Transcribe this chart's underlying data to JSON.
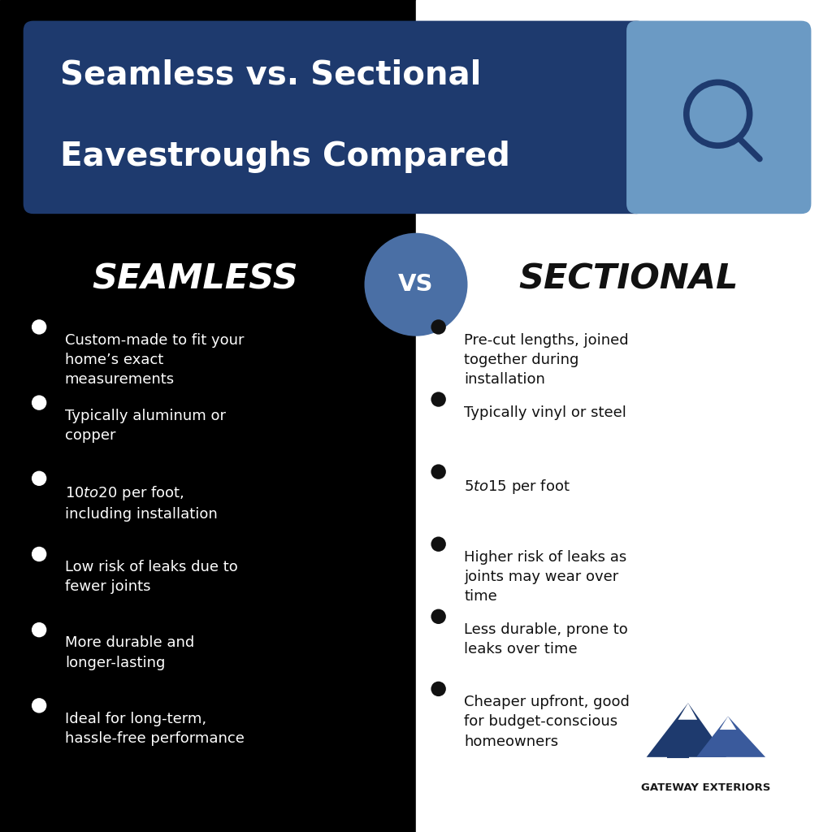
{
  "title_line1": "Seamless vs. Sectional",
  "title_line2": "Eavestroughs Compared",
  "left_heading": "SEAMLESS",
  "right_heading": "SECTIONAL",
  "vs_text": "VS",
  "left_bg": "#000000",
  "right_bg": "#ffffff",
  "title_box_color": "#1e3a6e",
  "title_box_light": "#6b9ac4",
  "vs_circle_color": "#4a6fa5",
  "left_text_color": "#ffffff",
  "right_text_color": "#111111",
  "left_items": [
    "Custom-made to fit your\nhome’s exact\nmeasurements",
    "Typically aluminum or\ncopper",
    "$10 to $20 per foot,\nincluding installation",
    "Low risk of leaks due to\nfewer joints",
    "More durable and\nlonger-lasting",
    "Ideal for long-term,\nhassle-free performance"
  ],
  "right_items": [
    "Pre-cut lengths, joined\ntogether during\ninstallation",
    "Typically vinyl or steel",
    "$5 to $15 per foot",
    "Higher risk of leaks as\njoints may wear over\ntime",
    "Less durable, prone to\nleaks over time",
    "Cheaper upfront, good\nfor budget-conscious\nhomeowners"
  ],
  "logo_text": "GATEWAY EXTERIORS",
  "mountain_dark": "#1e3a6e",
  "mountain_mid": "#3a5a9c",
  "mountain_light": "#6b9ac4"
}
